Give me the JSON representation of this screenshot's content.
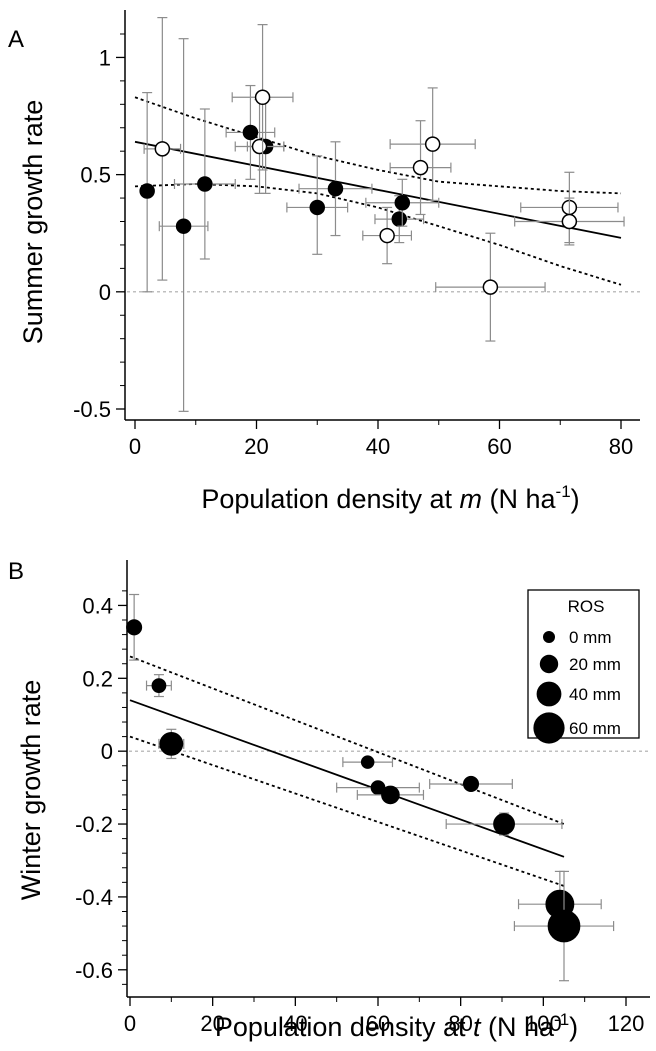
{
  "chart_data": [
    {
      "panel": "A",
      "type": "scatter",
      "ylabel": "Summer growth rate",
      "xlabel_parts": [
        "Population density at ",
        "m",
        " (N ha",
        "-1",
        ")"
      ],
      "xlim": [
        0,
        80
      ],
      "ylim": [
        -0.5,
        1.1
      ],
      "xticks": [
        0,
        20,
        40,
        60,
        80
      ],
      "yticks": [
        -0.5,
        0,
        0.5,
        1
      ],
      "ytick_labels": [
        "-0.5",
        "0",
        "0.5",
        "1"
      ],
      "reference_line_y": 0,
      "fit": {
        "x": [
          0,
          80
        ],
        "y": [
          0.64,
          0.23
        ]
      },
      "ci_upper": {
        "x": [
          0,
          10,
          20,
          30,
          40,
          50,
          60,
          70,
          80
        ],
        "y": [
          0.83,
          0.74,
          0.66,
          0.58,
          0.52,
          0.47,
          0.45,
          0.43,
          0.42
        ]
      },
      "ci_lower": {
        "x": [
          0,
          10,
          20,
          30,
          40,
          50,
          60,
          70,
          80
        ],
        "y": [
          0.45,
          0.46,
          0.45,
          0.42,
          0.36,
          0.28,
          0.2,
          0.11,
          0.03
        ]
      },
      "series": [
        {
          "marker": "filled",
          "points": [
            {
              "x": 2,
              "y": 0.43,
              "xerr": 0,
              "yerr": [
                0.43,
                0.42
              ]
            },
            {
              "x": 8,
              "y": 0.28,
              "xerr": 4,
              "yerr": [
                0.79,
                0.8
              ]
            },
            {
              "x": 11.5,
              "y": 0.46,
              "xerr": 5,
              "yerr": [
                0.32,
                0.32
              ]
            },
            {
              "x": 19,
              "y": 0.68,
              "xerr": 4,
              "yerr": [
                0.2,
                0.2
              ]
            },
            {
              "x": 21.5,
              "y": 0.62,
              "xerr": 3,
              "yerr": [
                0.2,
                0.2
              ]
            },
            {
              "x": 30,
              "y": 0.36,
              "xerr": 5,
              "yerr": [
                0.2,
                0.22
              ]
            },
            {
              "x": 33,
              "y": 0.44,
              "xerr": 6,
              "yerr": [
                0.2,
                0.2
              ]
            },
            {
              "x": 43.5,
              "y": 0.31,
              "xerr": 4,
              "yerr": [
                0.1,
                0.1
              ]
            },
            {
              "x": 44,
              "y": 0.38,
              "xerr": 6,
              "yerr": [
                0.1,
                0.1
              ]
            }
          ]
        },
        {
          "marker": "open",
          "points": [
            {
              "x": 4.5,
              "y": 0.61,
              "xerr": 3,
              "yerr": [
                0.56,
                0.56
              ]
            },
            {
              "x": 20.5,
              "y": 0.62,
              "xerr": 4,
              "yerr": [
                0.2,
                0.2
              ]
            },
            {
              "x": 21,
              "y": 0.83,
              "xerr": 5,
              "yerr": [
                0.31,
                0.31
              ]
            },
            {
              "x": 41.5,
              "y": 0.24,
              "xerr": 4,
              "yerr": [
                0.12,
                0.12
              ]
            },
            {
              "x": 47,
              "y": 0.53,
              "xerr": 5,
              "yerr": [
                0.2,
                0.2
              ]
            },
            {
              "x": 49,
              "y": 0.63,
              "xerr": 7,
              "yerr": [
                0.24,
                0.24
              ]
            },
            {
              "x": 58.5,
              "y": 0.02,
              "xerr": 9,
              "yerr": [
                0.23,
                0.23
              ]
            },
            {
              "x": 71.5,
              "y": 0.36,
              "xerr": 8,
              "yerr": [
                0.15,
                0.15
              ]
            },
            {
              "x": 71.5,
              "y": 0.3,
              "xerr": 9,
              "yerr": [
                0.1,
                0.1
              ]
            }
          ]
        }
      ]
    },
    {
      "panel": "B",
      "type": "scatter",
      "ylabel": "Winter growth rate",
      "xlabel_parts": [
        "Population density at ",
        "t",
        " (N ha",
        "-1",
        ")"
      ],
      "xlim": [
        0,
        120
      ],
      "ylim": [
        -0.65,
        0.5
      ],
      "xticks": [
        0,
        20,
        40,
        60,
        80,
        100,
        120
      ],
      "yticks": [
        -0.6,
        -0.4,
        -0.2,
        0,
        0.2,
        0.4
      ],
      "ytick_labels": [
        "-0.6",
        "-0.4",
        "-0.2",
        "0",
        "0.2",
        "0.4"
      ],
      "reference_line_y": 0,
      "fit": {
        "x": [
          0,
          105
        ],
        "y": [
          0.14,
          -0.29
        ]
      },
      "ci_upper": {
        "x": [
          0,
          105
        ],
        "y": [
          0.26,
          -0.2
        ]
      },
      "ci_lower": {
        "x": [
          0,
          105
        ],
        "y": [
          0.04,
          -0.37
        ]
      },
      "legend": {
        "title": "ROS",
        "position": "top-right",
        "items": [
          {
            "label": "0 mm",
            "ros": 0
          },
          {
            "label": "20 mm",
            "ros": 20
          },
          {
            "label": "40 mm",
            "ros": 40
          },
          {
            "label": "60 mm",
            "ros": 60
          }
        ]
      },
      "series": [
        {
          "marker": "filled-sized-by-ROS",
          "points": [
            {
              "x": 1,
              "y": 0.34,
              "ros": 8,
              "xerr": 0,
              "yerr": 0.09
            },
            {
              "x": 7,
              "y": 0.18,
              "ros": 4,
              "xerr": 3,
              "yerr": 0.03
            },
            {
              "x": 10,
              "y": 0.02,
              "ros": 32,
              "xerr": 3,
              "yerr": 0.04
            },
            {
              "x": 57.5,
              "y": -0.03,
              "ros": 0,
              "xerr": 6,
              "yerr": 0
            },
            {
              "x": 60,
              "y": -0.1,
              "ros": 4,
              "xerr": 10,
              "yerr": 0
            },
            {
              "x": 63,
              "y": -0.12,
              "ros": 16,
              "xerr": 8,
              "yerr": 0.02
            },
            {
              "x": 82.5,
              "y": -0.09,
              "ros": 8,
              "xerr": 10,
              "yerr": 0
            },
            {
              "x": 90.5,
              "y": -0.2,
              "ros": 26,
              "xerr": 14,
              "yerr": 0.03
            },
            {
              "x": 104,
              "y": -0.42,
              "ros": 48,
              "xerr": 10,
              "yerr": 0.09
            },
            {
              "x": 105,
              "y": -0.48,
              "ros": 60,
              "xerr": 12,
              "yerr": 0.15
            }
          ]
        }
      ]
    }
  ]
}
